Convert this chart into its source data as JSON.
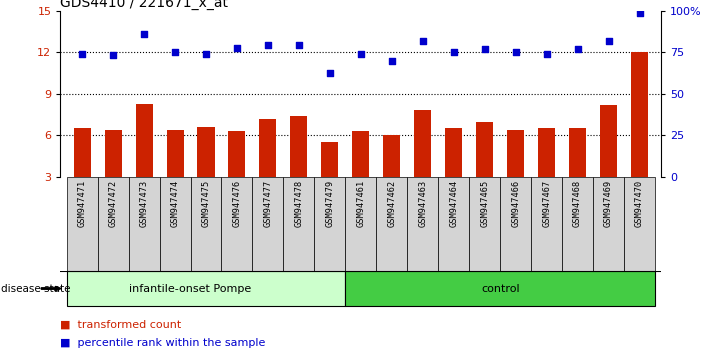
{
  "title": "GDS4410 / 221671_x_at",
  "samples": [
    "GSM947471",
    "GSM947472",
    "GSM947473",
    "GSM947474",
    "GSM947475",
    "GSM947476",
    "GSM947477",
    "GSM947478",
    "GSM947479",
    "GSM947461",
    "GSM947462",
    "GSM947463",
    "GSM947464",
    "GSM947465",
    "GSM947466",
    "GSM947467",
    "GSM947468",
    "GSM947469",
    "GSM947470"
  ],
  "red_bars": [
    6.5,
    6.4,
    8.3,
    6.4,
    6.6,
    6.3,
    7.2,
    7.4,
    5.5,
    6.3,
    6.0,
    7.8,
    6.5,
    7.0,
    6.4,
    6.5,
    6.5,
    8.2,
    12.0
  ],
  "blue_dots": [
    11.9,
    11.8,
    13.3,
    12.0,
    11.9,
    12.3,
    12.5,
    12.5,
    10.5,
    11.9,
    11.4,
    12.8,
    12.0,
    12.2,
    12.0,
    11.9,
    12.2,
    12.8,
    14.8
  ],
  "group1_count": 9,
  "group2_count": 10,
  "group1_label": "infantile-onset Pompe",
  "group2_label": "control",
  "disease_state_label": "disease state",
  "bar_color": "#cc2200",
  "dot_color": "#0000cc",
  "left_yticks": [
    3,
    6,
    9,
    12,
    15
  ],
  "right_yticks_val": [
    0,
    25,
    50,
    75,
    100
  ],
  "right_yticks_pos": [
    3,
    6,
    9,
    12,
    15
  ],
  "ylim": [
    3,
    15
  ],
  "dotted_lines": [
    6,
    9,
    12
  ],
  "legend_bar_label": "transformed count",
  "legend_dot_label": "percentile rank within the sample",
  "bg_color_plot": "#ffffff",
  "bg_color_xtick": "#d4d4d4",
  "group1_bg": "#ccffcc",
  "group2_bg": "#44cc44",
  "title_fontsize": 10,
  "tick_fontsize": 8
}
